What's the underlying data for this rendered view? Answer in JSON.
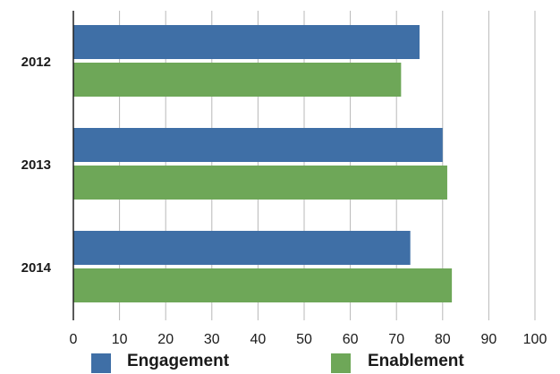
{
  "chart_data": {
    "type": "bar",
    "orientation": "horizontal",
    "categories": [
      "2012",
      "2013",
      "2014"
    ],
    "series": [
      {
        "name": "Engagement",
        "values": [
          75,
          80,
          73
        ],
        "color": "#3f6fa6"
      },
      {
        "name": "Enablement",
        "values": [
          71,
          81,
          82
        ],
        "color": "#6ea758"
      }
    ],
    "xticks": [
      0,
      10,
      20,
      30,
      40,
      50,
      60,
      70,
      80,
      90,
      100
    ],
    "xlim": [
      0,
      100
    ],
    "title": "",
    "xlabel": "",
    "ylabel": "",
    "grid": "vertical",
    "legend_position": "bottom"
  }
}
